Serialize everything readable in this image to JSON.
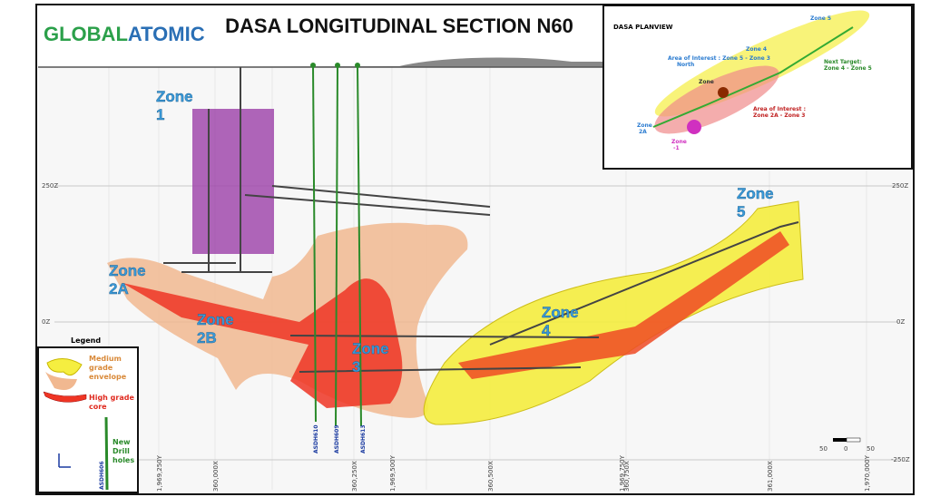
{
  "header": {
    "logo": {
      "part1": "GLOBAL",
      "part2": "ATOMIC"
    },
    "title": "DASA LONGITUDINAL SECTION N60"
  },
  "section": {
    "zones": [
      {
        "lines": [
          "Zone",
          "1"
        ]
      },
      {
        "lines": [
          "Zone",
          "2A"
        ]
      },
      {
        "lines": [
          "Zone",
          "2B"
        ]
      },
      {
        "lines": [
          "Zone",
          "3"
        ]
      },
      {
        "lines": [
          "Zone",
          "4"
        ]
      },
      {
        "lines": [
          "Zone",
          "5"
        ]
      }
    ],
    "elevations": [
      "250Z",
      "0Z",
      "-250Z"
    ],
    "eastings": [
      "360,000X",
      "360,250X",
      "360,500X",
      "360,750X",
      "361,000X"
    ],
    "northings": [
      "1,969,250Y",
      "1,969,500Y",
      "1,969,750Y",
      "1,970,000Y"
    ],
    "drill_holes": [
      "ASDH610",
      "ASDH609",
      "ASDH613"
    ]
  },
  "legend": {
    "title": "Legend",
    "medium": [
      "Medium",
      "grade",
      "envelope"
    ],
    "high": [
      "High grade",
      "core"
    ],
    "drill": [
      "New",
      "Drill",
      "holes"
    ],
    "drill_hole": "ASDH606"
  },
  "planview": {
    "title": "DASA PLANVIEW",
    "aoi_north": [
      "Area of Interest : Zone 5 - Zone 3",
      "North"
    ],
    "next_target": [
      "Next Target:",
      "Zone 4 - Zone 5"
    ],
    "aoi_south": [
      "Area of Interest :",
      "Zone 2A - Zone 3"
    ],
    "zone_2a": [
      "Zone",
      "2A"
    ],
    "zone_1": [
      "Zone",
      "-1"
    ],
    "zone_5": "Zone 5",
    "zone_4": "Zone 4",
    "zone": "Zone"
  },
  "scale": {
    "labels": [
      "50",
      "0",
      "50"
    ]
  }
}
